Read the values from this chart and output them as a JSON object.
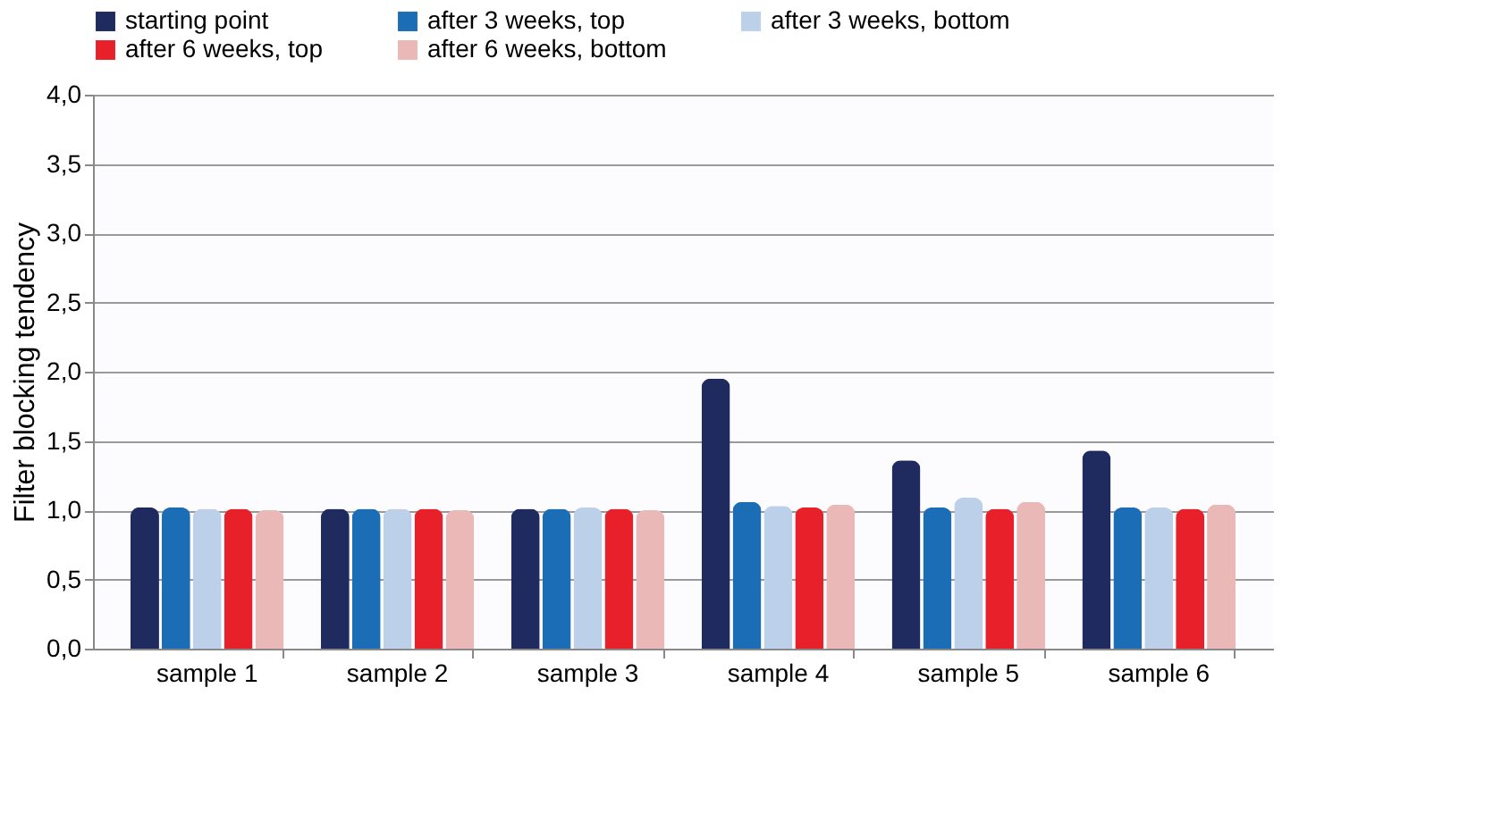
{
  "chart_data": {
    "type": "bar",
    "ylabel": "Filter blocking tendency",
    "categories": [
      "sample 1",
      "sample 2",
      "sample 3",
      "sample 4",
      "sample 5",
      "sample 6"
    ],
    "series": [
      {
        "name": "starting point",
        "color": "#1f2a5e",
        "values": [
          1.02,
          1.01,
          1.01,
          1.95,
          1.36,
          1.43
        ]
      },
      {
        "name": "after 3 weeks, top",
        "color": "#1b6db5",
        "values": [
          1.02,
          1.01,
          1.01,
          1.06,
          1.02,
          1.02
        ]
      },
      {
        "name": "after 3 weeks, bottom",
        "color": "#bcd0ea",
        "values": [
          1.01,
          1.01,
          1.02,
          1.03,
          1.09,
          1.02
        ]
      },
      {
        "name": "after 6 weeks, top",
        "color": "#e8202a",
        "values": [
          1.01,
          1.01,
          1.01,
          1.02,
          1.01,
          1.01
        ]
      },
      {
        "name": "after 6 weeks, bottom",
        "color": "#ebb8b8",
        "values": [
          1.0,
          1.0,
          1.0,
          1.04,
          1.06,
          1.04
        ]
      }
    ],
    "ylim": [
      0,
      4
    ],
    "yticks": [
      {
        "value": 0,
        "label": "0,0"
      },
      {
        "value": 0.5,
        "label": "0,5"
      },
      {
        "value": 1,
        "label": "1,0"
      },
      {
        "value": 1.5,
        "label": "1,5"
      },
      {
        "value": 2,
        "label": "2,0"
      },
      {
        "value": 2.5,
        "label": "2,5"
      },
      {
        "value": 3,
        "label": "3,0"
      },
      {
        "value": 3.5,
        "label": "3,5"
      },
      {
        "value": 4,
        "label": "4,0"
      }
    ],
    "grid": "y",
    "legend": "top"
  }
}
